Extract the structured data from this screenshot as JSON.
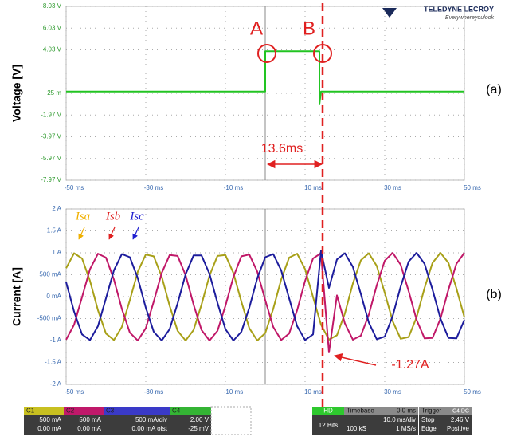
{
  "chart_data": [
    {
      "type": "line",
      "y_label": "Voltage [V]",
      "panel": "(a)",
      "axis_color": "#2e9a2e",
      "xaxis_color": "#3a6ab0",
      "ylim": [
        -7.97,
        8.03
      ],
      "yticks": [
        {
          "value": 8.03,
          "label": "8.03 V"
        },
        {
          "value": 6.03,
          "label": "6.03 V"
        },
        {
          "value": 4.03,
          "label": "4.03 V"
        },
        {
          "value": 0.03,
          "label": "25 m"
        },
        {
          "value": -1.97,
          "label": "-1.97 V"
        },
        {
          "value": -3.97,
          "label": "-3.97 V"
        },
        {
          "value": -5.97,
          "label": "-5.97 V"
        },
        {
          "value": -7.97,
          "label": "-7.97 V"
        }
      ],
      "xlim": [
        -50,
        50
      ],
      "xticks": [
        {
          "value": -50,
          "label": "-50 ms"
        },
        {
          "value": -30,
          "label": "-30 ms"
        },
        {
          "value": -10,
          "label": "-10 ms"
        },
        {
          "value": 10,
          "label": "10 ms"
        },
        {
          "value": 30,
          "label": "30 ms"
        },
        {
          "value": 50,
          "label": "50 ms"
        }
      ],
      "grid": true,
      "x": [
        -50,
        0,
        0,
        13.6,
        13.6,
        14,
        50
      ],
      "series": [
        {
          "name": "C4",
          "color": "#22c422",
          "values": [
            0.2,
            0.2,
            3.9,
            3.9,
            -1.0,
            0.2,
            0.2
          ]
        }
      ],
      "annotations": {
        "point_a": "A",
        "point_b": "B",
        "interval": "13.6ms"
      }
    },
    {
      "type": "line",
      "y_label": "Current [A]",
      "panel": "(b)",
      "axis_color": "#3a6ab0",
      "xaxis_color": "#3a6ab0",
      "ylim": [
        -2,
        2
      ],
      "yticks": [
        {
          "value": 2,
          "label": "2 A"
        },
        {
          "value": 1.5,
          "label": "1.5 A"
        },
        {
          "value": 1,
          "label": "1 A"
        },
        {
          "value": 0.5,
          "label": "500 mA"
        },
        {
          "value": 0,
          "label": "0 mA"
        },
        {
          "value": -0.5,
          "label": "-500 mA"
        },
        {
          "value": -1,
          "label": "-1 A"
        },
        {
          "value": -1.5,
          "label": "-1.5 A"
        },
        {
          "value": -2,
          "label": "-2 A"
        }
      ],
      "xlim": [
        -50,
        50
      ],
      "xticks": [
        {
          "value": -50,
          "label": "-50 ms"
        },
        {
          "value": -30,
          "label": "-30 ms"
        },
        {
          "value": -10,
          "label": "-10 ms"
        },
        {
          "value": 10,
          "label": "10 ms"
        },
        {
          "value": 30,
          "label": "30 ms"
        },
        {
          "value": 50,
          "label": "50 ms"
        }
      ],
      "grid": true,
      "x": [
        -50,
        -48,
        -46,
        -44,
        -42,
        -40,
        -38,
        -36,
        -34,
        -32,
        -30,
        -28,
        -26,
        -24,
        -22,
        -20,
        -18,
        -16,
        -14,
        -12,
        -10,
        -8,
        -6,
        -4,
        -2,
        0,
        2,
        4,
        6,
        8,
        10,
        12,
        14,
        16,
        18,
        20,
        22,
        24,
        26,
        28,
        30,
        32,
        34,
        36,
        38,
        40,
        42,
        44,
        46,
        48,
        50
      ],
      "series": [
        {
          "name": "Isa",
          "color": "#a8a018",
          "values": [
            0.65,
            0.99,
            0.87,
            0.36,
            -0.31,
            -0.84,
            -0.99,
            -0.69,
            -0.08,
            0.57,
            0.96,
            0.92,
            0.46,
            -0.21,
            -0.78,
            -1.0,
            -0.76,
            -0.18,
            0.48,
            0.93,
            0.95,
            0.54,
            -0.11,
            -0.72,
            -1.0,
            -0.83,
            -0.28,
            0.39,
            0.89,
            0.98,
            0.63,
            -0.01,
            -0.64,
            -0.98,
            -0.88,
            -0.38,
            0.3,
            0.83,
            0.99,
            0.7,
            0.09,
            -0.56,
            -0.96,
            -0.92,
            -0.47,
            0.2,
            0.77,
            1.0,
            0.77,
            0.19,
            -0.47
          ]
        },
        {
          "name": "Isb",
          "color": "#c01868",
          "values": [
            -0.98,
            -0.64,
            -0.01,
            0.63,
            0.98,
            0.89,
            0.39,
            -0.28,
            -0.82,
            -1.0,
            -0.72,
            -0.11,
            0.54,
            0.95,
            0.93,
            0.49,
            -0.18,
            -0.76,
            -1.0,
            -0.78,
            -0.21,
            0.45,
            0.92,
            0.96,
            0.57,
            -0.08,
            -0.69,
            -0.99,
            -0.84,
            -0.31,
            0.36,
            0.87,
            0.99,
            -1.27,
            0.03,
            -0.61,
            -0.98,
            -0.89,
            -0.41,
            0.26,
            0.82,
            1.0,
            0.73,
            0.13,
            -0.53,
            -0.95,
            -0.94,
            -0.5,
            0.16,
            0.75,
            1.0
          ]
        },
        {
          "name": "Isc",
          "color": "#1c1c9c",
          "values": [
            0.33,
            -0.34,
            -0.86,
            -0.99,
            -0.67,
            -0.04,
            0.6,
            0.97,
            0.9,
            0.42,
            -0.25,
            -0.8,
            -1.0,
            -0.74,
            -0.15,
            0.51,
            0.94,
            0.94,
            0.52,
            -0.14,
            -0.74,
            -1.0,
            -0.8,
            -0.25,
            0.42,
            0.9,
            0.97,
            0.6,
            -0.04,
            -0.67,
            -0.99,
            -0.86,
            1.05,
            0.2,
            0.85,
            0.99,
            0.68,
            0.06,
            -0.59,
            -0.97,
            -0.91,
            -0.44,
            0.23,
            0.8,
            1.0,
            0.75,
            0.16,
            -0.5,
            -0.94,
            -0.95,
            -0.53
          ]
        }
      ],
      "annotations": {
        "min_current": "-1.27A"
      }
    }
  ],
  "logo": {
    "brand": "TELEDYNE LECROY",
    "tagline": "Everywhereyoulook"
  },
  "status_bar": {
    "channels": [
      {
        "name": "C1",
        "scale": "500 mA",
        "offset": "0.00 mA"
      },
      {
        "name": "C2",
        "scale": "500 mA",
        "offset": "0.00 mA"
      },
      {
        "name": "C3",
        "scale": "500 mA/div",
        "offset": "0.00 mA ofst"
      },
      {
        "name": "C4",
        "scale": "2.00 V",
        "offset": "-25 mV"
      }
    ],
    "hd": {
      "name": "HD",
      "bits": "12 Bits"
    },
    "timebase": {
      "label": "Timebase",
      "delay": "0.0 ms",
      "div": "10.0 ms/div",
      "samples": "100 kS",
      "rate": "1 MS/s"
    },
    "trigger": {
      "label": "Trigger",
      "source": "C4 DC",
      "mode": "Stop",
      "level": "2.46 V",
      "type": "Edge",
      "slope": "Positive"
    }
  }
}
